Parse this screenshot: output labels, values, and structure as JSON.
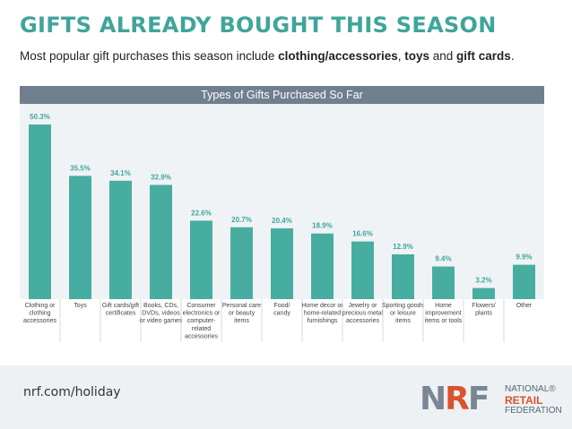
{
  "header": {
    "title": "GIFTS ALREADY BOUGHT THIS SEASON",
    "subtitle_parts": [
      {
        "text": "Most popular gift purchases this season include ",
        "bold": false
      },
      {
        "text": "clothing/accessories",
        "bold": true
      },
      {
        "text": ", ",
        "bold": false
      },
      {
        "text": "toys",
        "bold": true
      },
      {
        "text": " and ",
        "bold": false
      },
      {
        "text": "gift cards",
        "bold": true
      },
      {
        "text": ".",
        "bold": false
      }
    ]
  },
  "chart_data": {
    "type": "bar",
    "title": "Types of Gifts Purchased So Far",
    "categories": [
      [
        "Clothing or",
        "clothing",
        "accessories"
      ],
      [
        "Toys"
      ],
      [
        "Gift cards/gift",
        "certificates"
      ],
      [
        "Books, CDs,",
        "DVDs, videos",
        "or video games"
      ],
      [
        "Consumer",
        "electronics or",
        "computer-",
        "related",
        "accessories"
      ],
      [
        "Personal care",
        "or beauty",
        "items"
      ],
      [
        "Food/",
        "candy"
      ],
      [
        "Home decor or",
        "home-related",
        "furnishings"
      ],
      [
        "Jewelry or",
        "precious metal",
        "accessories"
      ],
      [
        "Sporting goods",
        "or leisure",
        "items"
      ],
      [
        "Home",
        "improvement",
        "items or tools"
      ],
      [
        "Flowers/",
        "plants"
      ],
      [
        "Other"
      ]
    ],
    "values": [
      50.3,
      35.5,
      34.1,
      32.9,
      22.6,
      20.7,
      20.4,
      18.9,
      16.6,
      12.9,
      9.4,
      3.2,
      9.9
    ],
    "value_labels": [
      "50.3%",
      "35.5%",
      "34.1%",
      "32.9%",
      "22.6%",
      "20.7%",
      "20.4%",
      "18.9%",
      "16.6%",
      "12.9%",
      "9.4%",
      "3.2%",
      "9.9%"
    ],
    "ylim": [
      0,
      50.3
    ],
    "grid": false,
    "bar_color": "#47ada1",
    "label_color": "#3fa59a"
  },
  "footer": {
    "url": "nrf.com/holiday",
    "logo_letters": [
      "N",
      "R",
      "F"
    ],
    "logo_text": [
      "NATIONAL",
      "RETAIL",
      "FEDERATION"
    ],
    "logo_mark": "®"
  },
  "colors": {
    "title": "#3fa59a",
    "chart_header_bg": "#6f7f8e",
    "accent_red": "#d9532e"
  }
}
